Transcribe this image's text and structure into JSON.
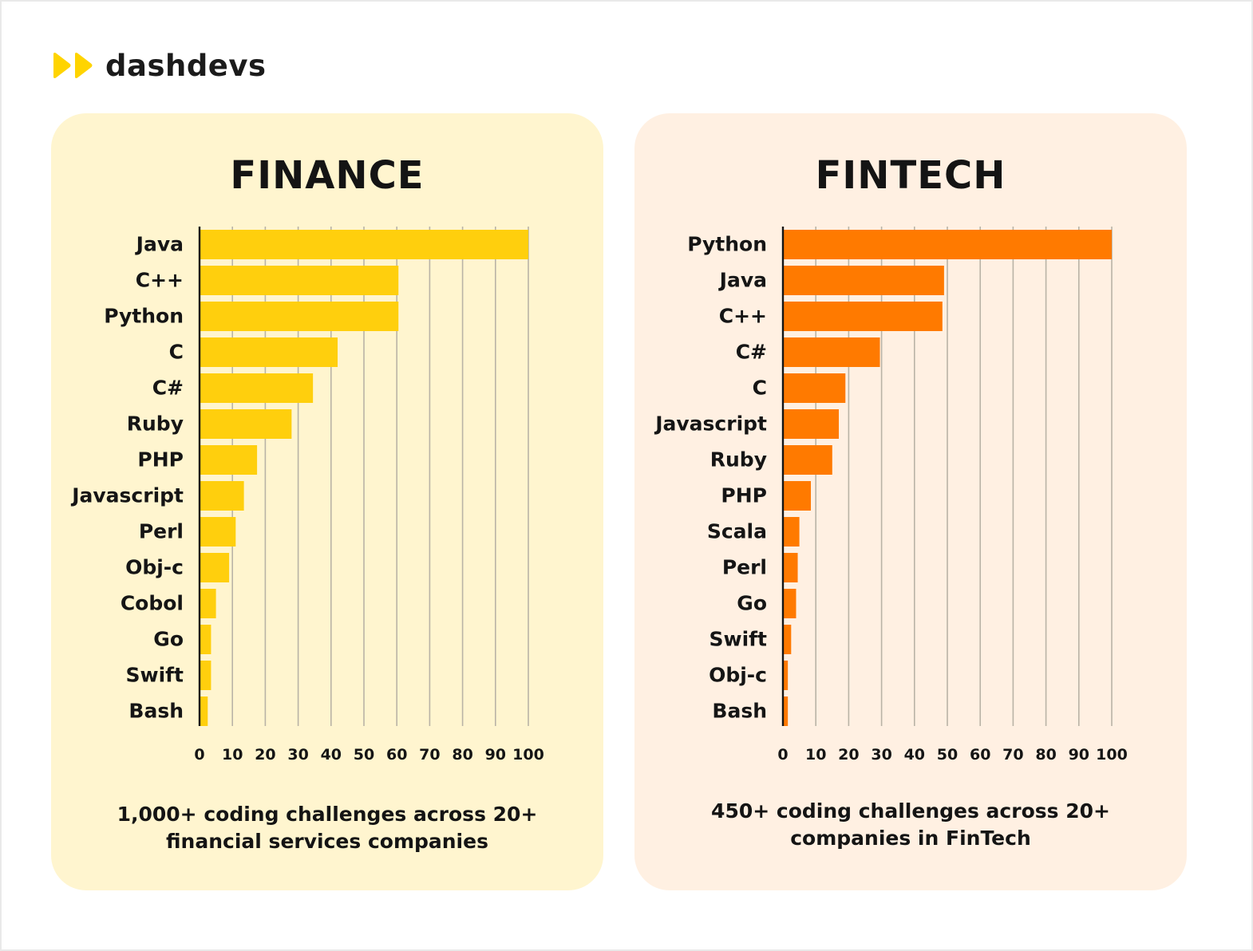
{
  "brand": {
    "name": "dashdevs",
    "accent": "#FFD400",
    "logo_icon": "double-chevron-icon"
  },
  "panels": [
    {
      "id": "finance",
      "title": "FINANCE",
      "background": "#FFF5CF",
      "bar_color": "#FFCF0D",
      "caption": {
        "line1": "1,000+ coding challenges across 20+",
        "line2": "financial services companies"
      }
    },
    {
      "id": "fintech",
      "title": "FINTECH",
      "background": "#FFF0E2",
      "bar_color": "#FF7A00",
      "caption": {
        "line1": "450+ coding challenges across 20+",
        "line2": "companies in FinTech"
      }
    }
  ],
  "chart_data": [
    {
      "type": "bar",
      "orientation": "horizontal",
      "title": "FINANCE",
      "categories": [
        "Java",
        "C++",
        "Python",
        "C",
        "C#",
        "Ruby",
        "PHP",
        "Javascript",
        "Perl",
        "Obj-c",
        "Cobol",
        "Go",
        "Swift",
        "Bash"
      ],
      "values": [
        100,
        60.5,
        60.5,
        42,
        34.5,
        28,
        17.5,
        13.5,
        11,
        9,
        5,
        3.5,
        3.5,
        2.5
      ],
      "xlim": [
        0,
        100
      ],
      "xticks": [
        0,
        10,
        20,
        30,
        40,
        50,
        60,
        70,
        80,
        90,
        100
      ],
      "grid": "vertical"
    },
    {
      "type": "bar",
      "orientation": "horizontal",
      "title": "FINTECH",
      "categories": [
        "Python",
        "Java",
        "C++",
        "C#",
        "C",
        "Javascript",
        "Ruby",
        "PHP",
        "Scala",
        "Perl",
        "Go",
        "Swift",
        "Obj-c",
        "Bash"
      ],
      "values": [
        100,
        49,
        48.5,
        29.5,
        19,
        17,
        15,
        8.5,
        5,
        4.5,
        4,
        2.5,
        1.5,
        1.5
      ],
      "xlim": [
        0,
        100
      ],
      "xticks": [
        0,
        10,
        20,
        30,
        40,
        50,
        60,
        70,
        80,
        90,
        100
      ],
      "grid": "vertical"
    }
  ]
}
